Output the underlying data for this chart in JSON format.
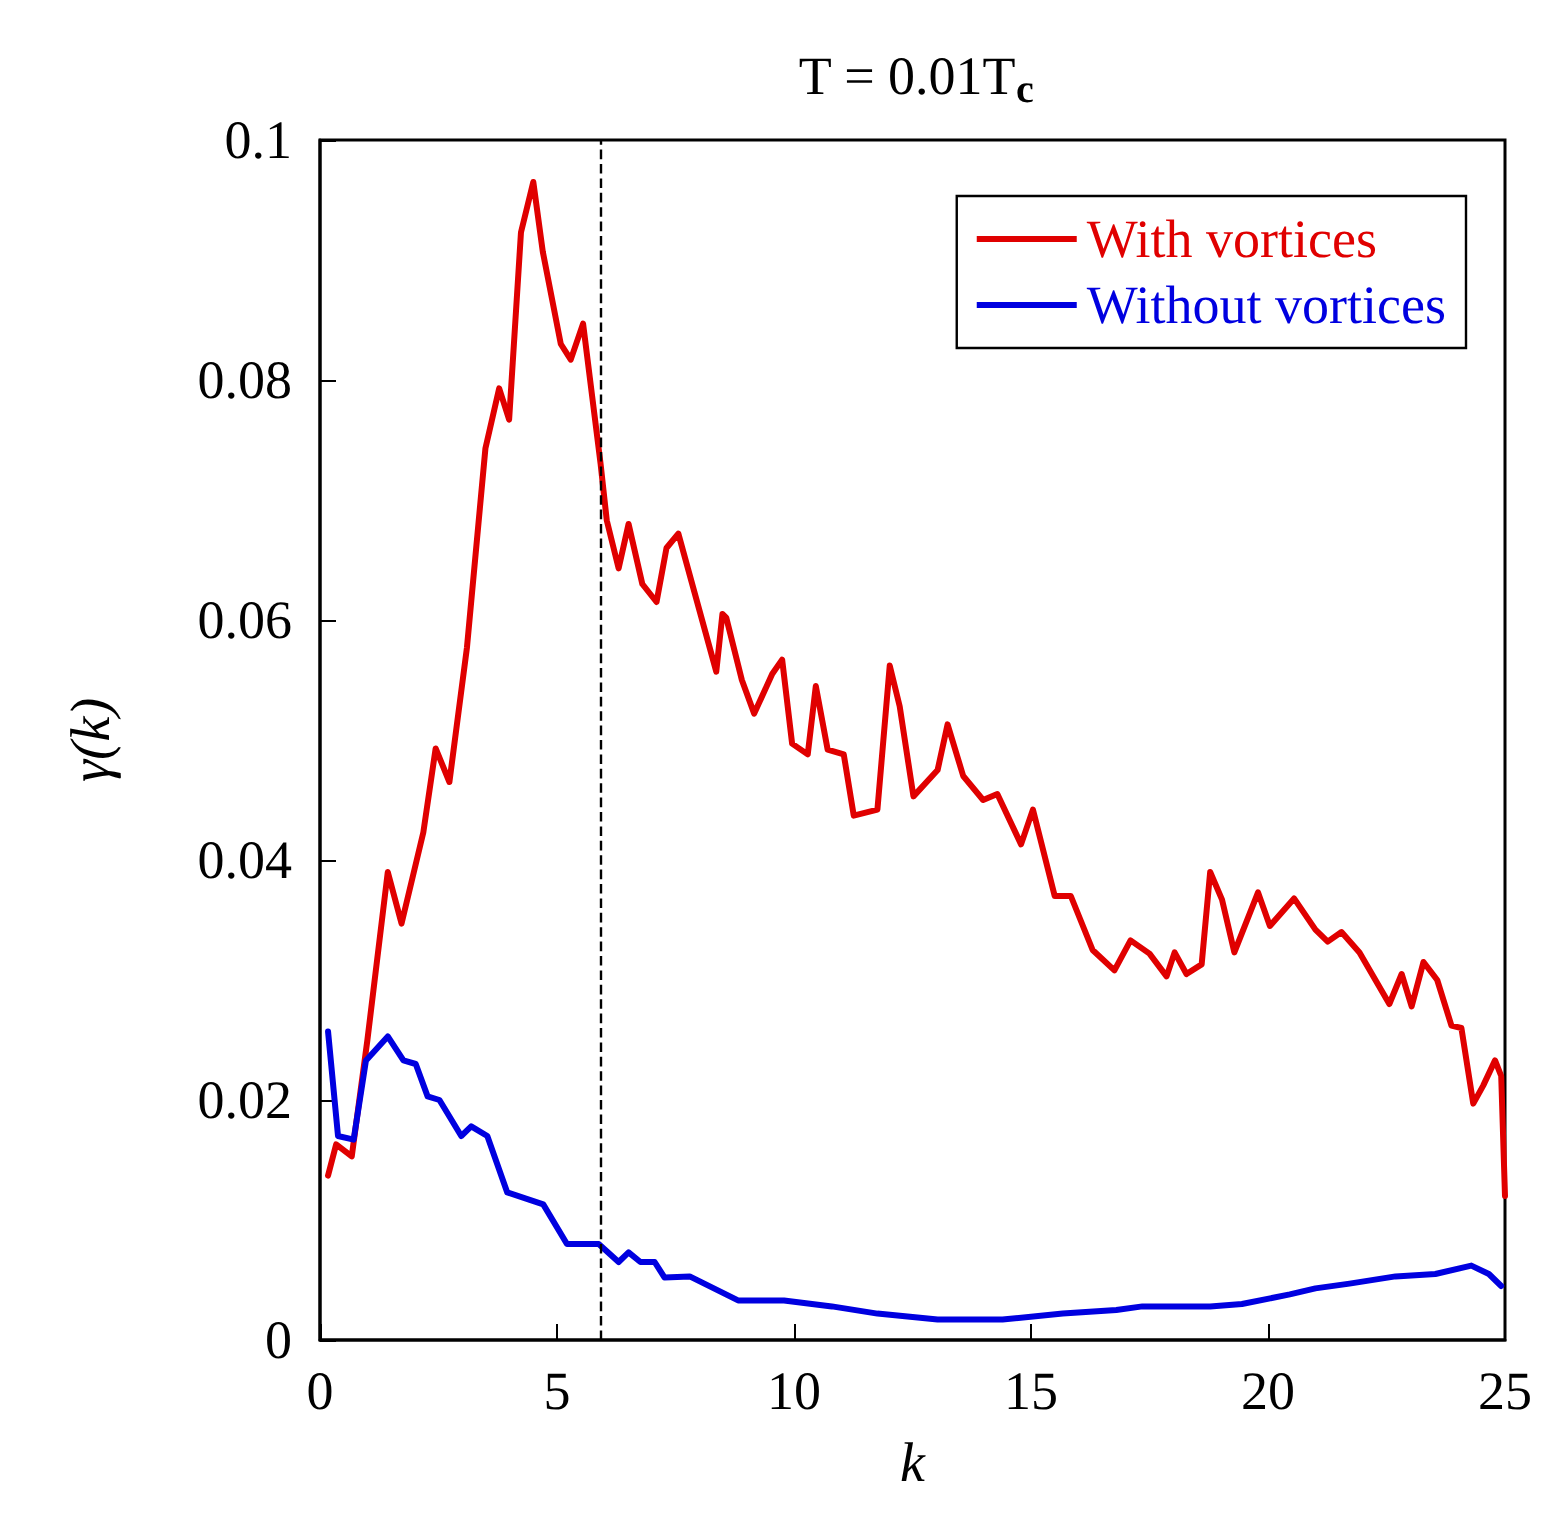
{
  "chart_data": {
    "type": "line",
    "title": "T = 0.01T$_{c}$",
    "xlabel": "k",
    "ylabel": "γ(k)",
    "xlim": [
      0,
      25
    ],
    "xticks": [
      0,
      5,
      10,
      15,
      20,
      25
    ],
    "ylim": [
      0,
      0.1
    ],
    "yticks": [
      0,
      0.02,
      0.04,
      0.06,
      0.08,
      0.1
    ],
    "grid": false,
    "legend": "top right",
    "line_style": "solid",
    "marker": "none",
    "ref_lines": [
      {
        "axis": "x",
        "value": 5.9,
        "color": "#000000",
        "line_style": "dashed"
      }
    ],
    "series": [
      {
        "name": "With vortices",
        "color": "#e00000",
        "x": [
          0.17,
          0.34,
          0.67,
          1.0,
          1.43,
          1.72,
          2.18,
          2.44,
          2.73,
          3.1,
          3.49,
          3.78,
          3.99,
          4.24,
          4.5,
          4.7,
          5.08,
          5.29,
          5.55,
          5.92,
          6.05,
          6.3,
          6.51,
          6.8,
          7.1,
          7.31,
          7.56,
          8.36,
          8.49,
          8.57,
          8.9,
          9.16,
          9.54,
          9.75,
          9.96,
          10.29,
          10.46,
          10.71,
          11.05,
          11.26,
          11.76,
          12.02,
          12.23,
          12.52,
          13.03,
          13.24,
          13.57,
          13.99,
          14.29,
          14.79,
          15.04,
          15.5,
          15.84,
          16.3,
          16.76,
          17.1,
          17.5,
          17.86,
          18.03,
          18.28,
          18.6,
          18.78,
          19.03,
          19.29,
          19.79,
          20.04,
          20.55,
          21.0,
          21.26,
          21.55,
          21.93,
          22.56,
          22.82,
          23.03,
          23.28,
          23.57,
          23.87,
          24.08,
          24.33,
          24.54,
          24.79,
          24.92,
          25.0
        ],
        "values": [
          0.0137,
          0.0163,
          0.0153,
          0.025,
          0.039,
          0.0347,
          0.0423,
          0.0493,
          0.0465,
          0.0577,
          0.0743,
          0.0793,
          0.0767,
          0.0923,
          0.0965,
          0.0907,
          0.083,
          0.0817,
          0.0847,
          0.073,
          0.0683,
          0.0643,
          0.068,
          0.063,
          0.0615,
          0.066,
          0.0672,
          0.0557,
          0.0605,
          0.0602,
          0.055,
          0.0522,
          0.0555,
          0.0567,
          0.0497,
          0.0488,
          0.0545,
          0.0492,
          0.0488,
          0.0437,
          0.0442,
          0.0562,
          0.0528,
          0.0453,
          0.0475,
          0.0513,
          0.047,
          0.045,
          0.0455,
          0.0413,
          0.0442,
          0.037,
          0.037,
          0.0325,
          0.0308,
          0.0333,
          0.0322,
          0.0303,
          0.0323,
          0.0305,
          0.0313,
          0.039,
          0.0367,
          0.0323,
          0.0373,
          0.0345,
          0.0368,
          0.0342,
          0.0332,
          0.034,
          0.0323,
          0.028,
          0.0305,
          0.0278,
          0.0315,
          0.03,
          0.0262,
          0.026,
          0.0197,
          0.0212,
          0.0233,
          0.022,
          0.012
        ]
      },
      {
        "name": "Without vortices",
        "color": "#0000e0",
        "x": [
          0.17,
          0.38,
          0.71,
          0.97,
          1.43,
          1.76,
          2.02,
          2.27,
          2.52,
          2.98,
          3.19,
          3.53,
          3.95,
          4.71,
          5.21,
          5.88,
          6.3,
          6.51,
          6.76,
          7.06,
          7.27,
          7.8,
          8.82,
          9.79,
          10.8,
          11.76,
          13.03,
          14.4,
          15.67,
          16.8,
          17.35,
          18.78,
          19.45,
          20.46,
          21.0,
          21.72,
          22.69,
          23.53,
          24.29,
          24.66,
          24.92
        ],
        "values": [
          0.0257,
          0.017,
          0.0167,
          0.0233,
          0.0253,
          0.0233,
          0.023,
          0.0203,
          0.02,
          0.017,
          0.0178,
          0.017,
          0.0123,
          0.0113,
          0.008,
          0.008,
          0.0065,
          0.0073,
          0.0065,
          0.0065,
          0.0052,
          0.0053,
          0.0033,
          0.0033,
          0.0028,
          0.0022,
          0.0017,
          0.0017,
          0.0022,
          0.0025,
          0.0028,
          0.0028,
          0.003,
          0.0038,
          0.0043,
          0.0047,
          0.0053,
          0.0055,
          0.0062,
          0.0055,
          0.0045
        ]
      }
    ]
  }
}
